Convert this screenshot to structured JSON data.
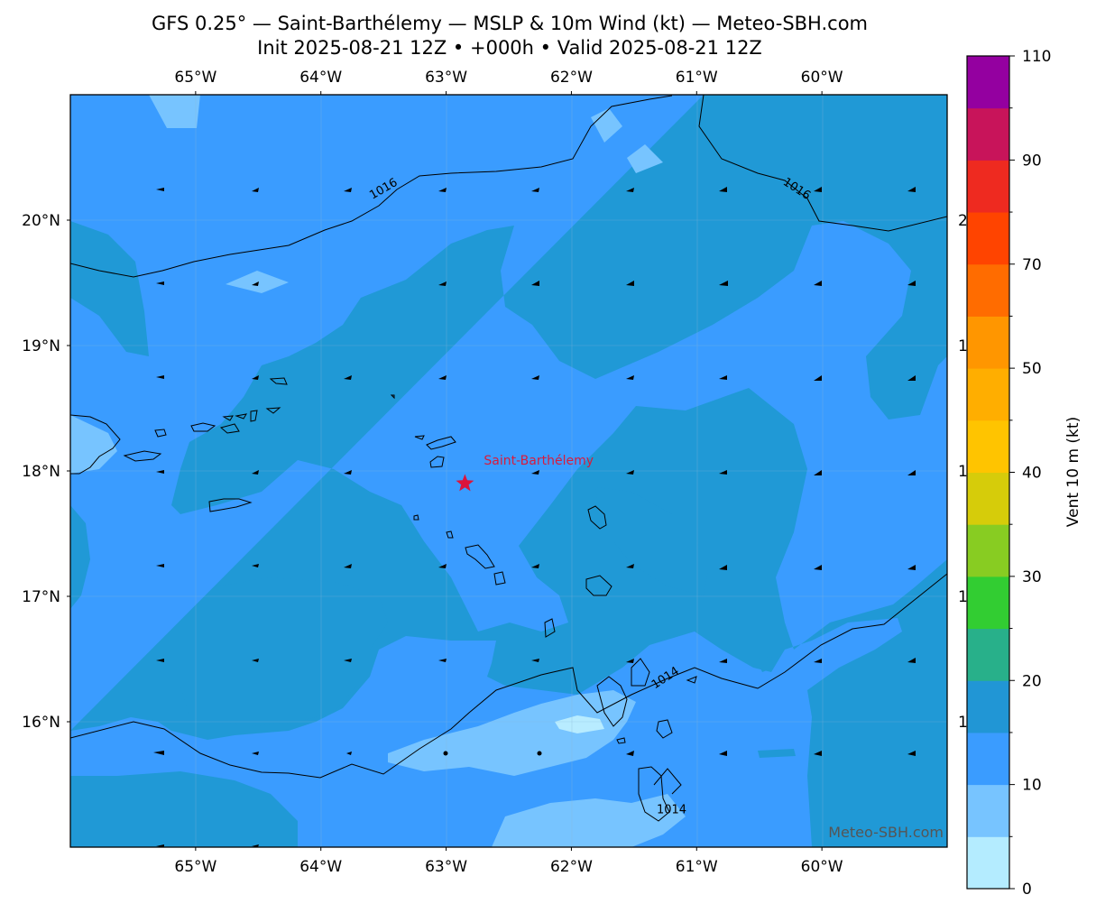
{
  "title": {
    "line1": "GFS 0.25° — Saint-Barthélemy — MSLP & 10m Wind (kt) — Meteo-SBH.com",
    "line2": "Init 2025-08-21 12Z • +000h • Valid 2025-08-21 12Z"
  },
  "map": {
    "lon_range": [
      -66.0,
      -59.0
    ],
    "lat_range": [
      15.0,
      21.0
    ],
    "lon_ticks": [
      {
        "value": -65,
        "label": "65°W"
      },
      {
        "value": -64,
        "label": "64°W"
      },
      {
        "value": -63,
        "label": "63°W"
      },
      {
        "value": -62,
        "label": "62°W"
      },
      {
        "value": -61,
        "label": "61°W"
      },
      {
        "value": -60,
        "label": "60°W"
      }
    ],
    "lat_ticks": [
      {
        "value": 20,
        "label": "20°N"
      },
      {
        "value": 19,
        "label": "19°N"
      },
      {
        "value": 18,
        "label": "18°N"
      },
      {
        "value": 17,
        "label": "17°N"
      },
      {
        "value": 16,
        "label": "16°N"
      }
    ],
    "right_clipped_labels": [
      "2",
      "1",
      "1",
      "1",
      "1"
    ],
    "marker": {
      "name": "Saint-Barthélemy",
      "lon": -62.85,
      "lat": 17.9,
      "color": "#dc143c"
    },
    "isobars": [
      {
        "label": "1016",
        "label_lon": -63.5,
        "label_lat": 20.25
      },
      {
        "label": "1016",
        "label_lon": -60.2,
        "label_lat": 20.25
      },
      {
        "label": "1014",
        "label_lon": -61.25,
        "label_lat": 16.35
      },
      {
        "label": "1014",
        "label_lon": -61.2,
        "label_lat": 15.3
      }
    ],
    "watermark": "Meteo-SBH.com",
    "wind_fill_colors": {
      "5-10": "#77c4ff",
      "10-15": "#3a9cff",
      "15-20": "#2099d6",
      "0-5": "#b8ecff"
    }
  },
  "colorbar": {
    "label": "Vent 10 m (kt)",
    "levels": [
      0,
      5,
      10,
      15,
      20,
      25,
      30,
      35,
      40,
      45,
      50,
      60,
      70,
      80,
      90,
      100,
      110
    ],
    "colors": [
      "#b4ecff",
      "#77c4ff",
      "#3a9cff",
      "#2196d5",
      "#28b08a",
      "#32cd32",
      "#88cc22",
      "#d6cc0a",
      "#ffc400",
      "#ffae00",
      "#ff9600",
      "#ff6c00",
      "#ff4400",
      "#ee2a20",
      "#c8145a",
      "#9400a0"
    ],
    "tick_labels": [
      "0",
      "10",
      "20",
      "30",
      "40",
      "50",
      "70",
      "90",
      "110"
    ]
  }
}
